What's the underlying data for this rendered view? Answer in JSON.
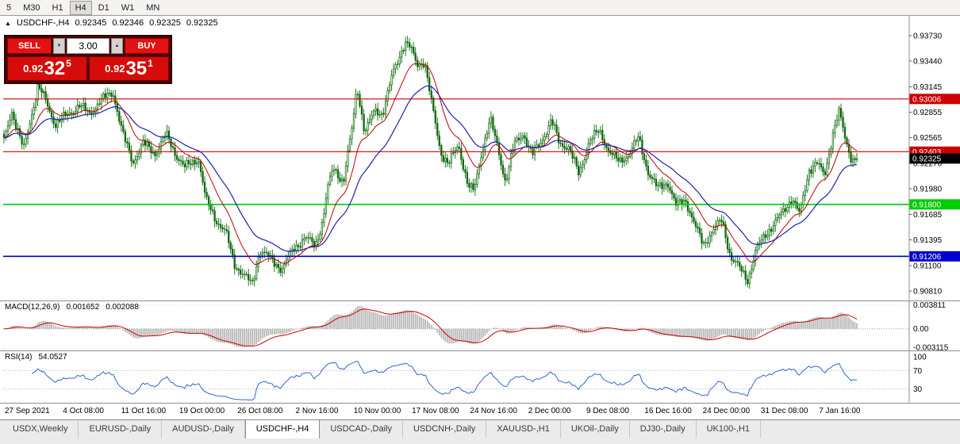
{
  "toolbar": {
    "timeframes": [
      "5",
      "M30",
      "H1",
      "H4",
      "D1",
      "W1",
      "MN"
    ],
    "active_timeframe": "H4"
  },
  "icons": {
    "chart_marker": "▲",
    "spinner_up": "▲",
    "spinner_down": "▼"
  },
  "chart_header": {
    "symbol": "USDCHF-,H4",
    "open": "0.92345",
    "high": "0.92346",
    "low": "0.92325",
    "close": "0.92325"
  },
  "trade_panel": {
    "sell_label": "SELL",
    "buy_label": "BUY",
    "lot_size": "3.00",
    "sell_price": {
      "prefix": "0.92",
      "big": "32",
      "sup": "5"
    },
    "buy_price": {
      "prefix": "0.92",
      "big": "35",
      "sup": "1"
    }
  },
  "indicators": {
    "macd": {
      "label": "MACD(12,26,9)",
      "value1": "0.001652",
      "value2": "0.002088",
      "axis": [
        "0.003811",
        "0.00",
        "-0.003115"
      ],
      "periods": [
        12,
        26,
        9
      ]
    },
    "rsi": {
      "label": "RSI(14)",
      "value": "54.0527",
      "axis": [
        "100",
        "70",
        "30"
      ],
      "period": 14,
      "levels": [
        70,
        30
      ]
    }
  },
  "tabs": [
    "USDX,Weekly",
    "EURUSD-,Daily",
    "AUDUSD-,Daily",
    "USDCHF-,H4",
    "USDCAD-,Daily",
    "USDCNH-,Daily",
    "XAUUSD-,H1",
    "UKOil-,Daily",
    "DJ30-,Daily",
    "UK100-,H1"
  ],
  "active_tab": "USDCHF-,H4",
  "chart_data": {
    "type": "candlestick",
    "symbol": "USDCHF",
    "timeframe": "H4",
    "grid": false,
    "y_ticks": [
      "0.93730",
      "0.93440",
      "0.93145",
      "0.92855",
      "0.92565",
      "0.92270",
      "0.91980",
      "0.91685",
      "0.91395",
      "0.91100",
      "0.90810"
    ],
    "x_ticks": [
      "27 Sep 2021",
      "4 Oct 08:00",
      "11 Oct 16:00",
      "19 Oct 00:00",
      "26 Oct 08:00",
      "2 Nov 16:00",
      "10 Nov 00:00",
      "17 Nov 08:00",
      "24 Nov 16:00",
      "2 Dec 00:00",
      "9 Dec 08:00",
      "16 Dec 16:00",
      "24 Dec 00:00",
      "31 Dec 08:00",
      "7 Jan 16:00"
    ],
    "hlines": [
      {
        "price": 0.93006,
        "label": "0.93006",
        "color": "#cc0000",
        "width": 1.2
      },
      {
        "price": 0.92403,
        "label": "0.92403",
        "color": "#cc0000",
        "width": 1.2
      },
      {
        "price": 0.918,
        "label": "0.91800",
        "color": "#00cc00",
        "width": 1.6
      },
      {
        "price": 0.91206,
        "label": "0.91206",
        "color": "#0000cc",
        "width": 1.6
      }
    ],
    "current_price": {
      "value": 0.92325,
      "label": "0.92325",
      "tag_color": "#000000"
    },
    "ma_lines": [
      {
        "name": "fast",
        "period": 15,
        "color": "#c00000"
      },
      {
        "name": "slow",
        "period": 34,
        "color": "#2020b0"
      }
    ],
    "price_path": [
      [
        0.0,
        0.9252
      ],
      [
        0.009,
        0.9288
      ],
      [
        0.023,
        0.9242
      ],
      [
        0.04,
        0.9316
      ],
      [
        0.049,
        0.9298
      ],
      [
        0.06,
        0.9272
      ],
      [
        0.077,
        0.9284
      ],
      [
        0.088,
        0.9294
      ],
      [
        0.1,
        0.9283
      ],
      [
        0.112,
        0.9298
      ],
      [
        0.128,
        0.9308
      ],
      [
        0.14,
        0.9258
      ],
      [
        0.151,
        0.9228
      ],
      [
        0.163,
        0.925
      ],
      [
        0.177,
        0.9238
      ],
      [
        0.19,
        0.926
      ],
      [
        0.2,
        0.924
      ],
      [
        0.212,
        0.9222
      ],
      [
        0.228,
        0.9233
      ],
      [
        0.237,
        0.9184
      ],
      [
        0.249,
        0.9162
      ],
      [
        0.26,
        0.9148
      ],
      [
        0.27,
        0.9112
      ],
      [
        0.284,
        0.9096
      ],
      [
        0.291,
        0.9088
      ],
      [
        0.3,
        0.9128
      ],
      [
        0.312,
        0.9118
      ],
      [
        0.326,
        0.9106
      ],
      [
        0.34,
        0.913
      ],
      [
        0.353,
        0.9142
      ],
      [
        0.365,
        0.9133
      ],
      [
        0.374,
        0.9162
      ],
      [
        0.379,
        0.9196
      ],
      [
        0.386,
        0.9222
      ],
      [
        0.398,
        0.9206
      ],
      [
        0.409,
        0.9272
      ],
      [
        0.414,
        0.9316
      ],
      [
        0.423,
        0.9262
      ],
      [
        0.435,
        0.9288
      ],
      [
        0.444,
        0.9284
      ],
      [
        0.456,
        0.933
      ],
      [
        0.47,
        0.9366
      ],
      [
        0.477,
        0.9358
      ],
      [
        0.484,
        0.934
      ],
      [
        0.493,
        0.9344
      ],
      [
        0.502,
        0.9292
      ],
      [
        0.512,
        0.924
      ],
      [
        0.521,
        0.9226
      ],
      [
        0.533,
        0.9248
      ],
      [
        0.544,
        0.9202
      ],
      [
        0.551,
        0.9194
      ],
      [
        0.56,
        0.924
      ],
      [
        0.57,
        0.9278
      ],
      [
        0.579,
        0.9244
      ],
      [
        0.588,
        0.9206
      ],
      [
        0.598,
        0.9248
      ],
      [
        0.609,
        0.9262
      ],
      [
        0.619,
        0.9236
      ],
      [
        0.63,
        0.9252
      ],
      [
        0.642,
        0.9276
      ],
      [
        0.651,
        0.925
      ],
      [
        0.662,
        0.9246
      ],
      [
        0.674,
        0.9214
      ],
      [
        0.686,
        0.9252
      ],
      [
        0.698,
        0.9264
      ],
      [
        0.709,
        0.9242
      ],
      [
        0.721,
        0.9228
      ],
      [
        0.733,
        0.9238
      ],
      [
        0.744,
        0.9256
      ],
      [
        0.755,
        0.9218
      ],
      [
        0.766,
        0.9198
      ],
      [
        0.778,
        0.9206
      ],
      [
        0.788,
        0.9178
      ],
      [
        0.799,
        0.9186
      ],
      [
        0.81,
        0.9156
      ],
      [
        0.82,
        0.9134
      ],
      [
        0.831,
        0.915
      ],
      [
        0.842,
        0.9162
      ],
      [
        0.852,
        0.912
      ],
      [
        0.863,
        0.9106
      ],
      [
        0.872,
        0.9094
      ],
      [
        0.882,
        0.9128
      ],
      [
        0.893,
        0.9146
      ],
      [
        0.903,
        0.9158
      ],
      [
        0.914,
        0.9172
      ],
      [
        0.924,
        0.9188
      ],
      [
        0.933,
        0.9168
      ],
      [
        0.944,
        0.922
      ],
      [
        0.953,
        0.9228
      ],
      [
        0.962,
        0.9212
      ],
      [
        0.972,
        0.9262
      ],
      [
        0.979,
        0.9286
      ],
      [
        0.987,
        0.9252
      ],
      [
        0.994,
        0.9232
      ],
      [
        1.0,
        0.92325
      ]
    ],
    "colors": {
      "candle_up": "#ffffff",
      "candle_down": "#0f6b0f",
      "candle_outline": "#0f6b0f",
      "ma_fast": "#c00000",
      "ma_slow": "#2020b0",
      "macd_hist": "#b4b4b4",
      "macd_signal": "#cc0000",
      "rsi_line": "#3366cc"
    }
  }
}
